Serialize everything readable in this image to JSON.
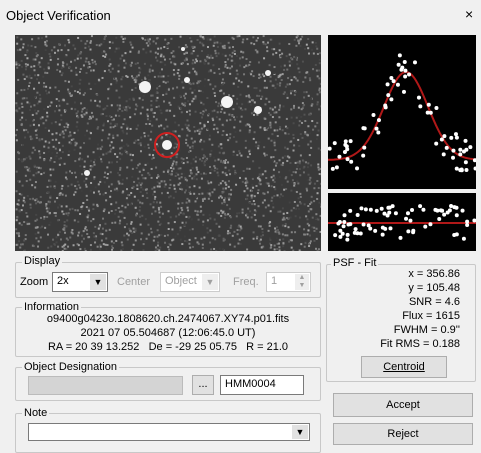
{
  "window": {
    "title": "Object Verification",
    "close": "×"
  },
  "display": {
    "label": "Display",
    "zoom_label": "Zoom",
    "zoom": "2x",
    "center_label": "Center",
    "center": "Object",
    "freq_label": "Freq.",
    "freq": "1"
  },
  "information": {
    "label": "Information",
    "file": "o9400g0423o.1808620.ch.2474067.XY74.p01.fits",
    "date": "2021 07 05.504687 (12:06:45.0 UT)",
    "coords": "RA = 20 39 13.252   De = -29 25 05.75   R = 21.0"
  },
  "designation": {
    "label": "Object Designation",
    "browse": "...",
    "value": "HMM0004"
  },
  "note": {
    "label": "Note"
  },
  "psf": {
    "label": "PSF - Fit",
    "lines": [
      "x = 356.86",
      "y = 105.48",
      "SNR = 4.6",
      "Flux = 1615",
      "FWHM = 0.9''",
      "Fit RMS = 0.188"
    ],
    "centroid": "Centroid"
  },
  "buttons": {
    "accept": "Accept",
    "reject": "Reject"
  }
}
